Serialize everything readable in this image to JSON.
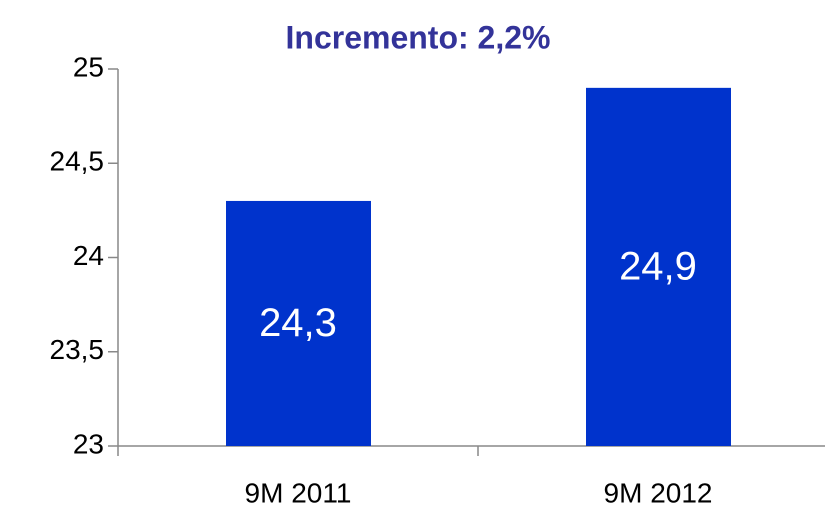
{
  "chart_data": {
    "type": "bar",
    "title": "Incremento: 2,2%",
    "categories": [
      "9M 2011",
      "9M 2012"
    ],
    "values": [
      24.3,
      24.9
    ],
    "value_labels": [
      "24,3",
      "24,9"
    ],
    "color": "#0033cc",
    "ylim": [
      23,
      25
    ],
    "yticks": [
      23,
      {
        "value": 23.5,
        "label": "23,5"
      },
      24,
      {
        "value": 24.5,
        "label": "24,5"
      },
      25
    ],
    "grid": false
  }
}
